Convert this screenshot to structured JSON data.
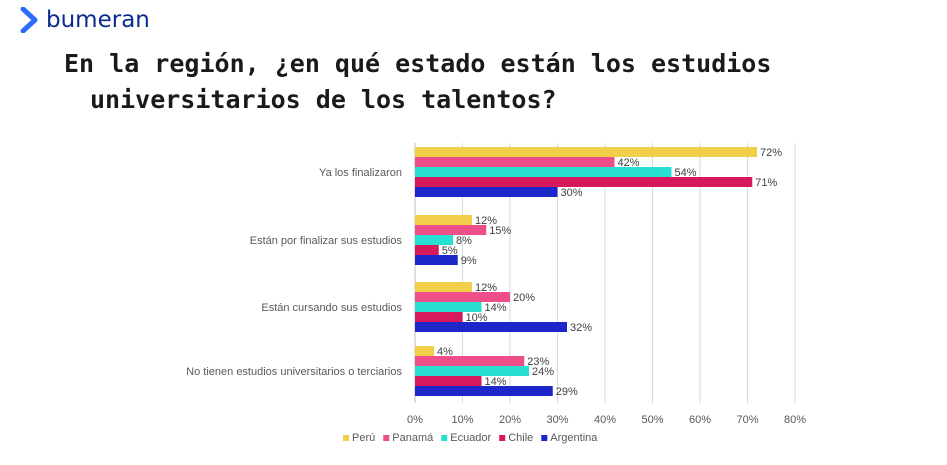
{
  "brand": {
    "name": "bumeran",
    "accent": "#2f6bff"
  },
  "title_lines": [
    "En la región, ¿en qué estado están los estudios",
    "universitarios de los talentos?"
  ],
  "chart_data": {
    "type": "bar",
    "orientation": "horizontal",
    "categories": [
      "Ya los finalizaron",
      "Están por finalizar sus estudios",
      "Están cursando sus estudios",
      "No tienen estudios universitarios o terciarios"
    ],
    "series": [
      {
        "name": "Perú",
        "color": "#f2cf4b",
        "values": [
          72,
          12,
          12,
          4
        ]
      },
      {
        "name": "Panamá",
        "color": "#ee4f8b",
        "values": [
          42,
          15,
          20,
          23
        ]
      },
      {
        "name": "Ecuador",
        "color": "#27e0d2",
        "values": [
          54,
          8,
          14,
          24
        ]
      },
      {
        "name": "Chile",
        "color": "#d7185c",
        "values": [
          71,
          5,
          10,
          14
        ]
      },
      {
        "name": "Argentina",
        "color": "#1d27c9",
        "values": [
          30,
          9,
          32,
          29
        ]
      }
    ],
    "xlim": [
      0,
      80
    ],
    "xticks": [
      0,
      10,
      20,
      30,
      40,
      50,
      60,
      70,
      80
    ],
    "tick_suffix": "%",
    "grid": true,
    "legend_position": "bottom"
  }
}
